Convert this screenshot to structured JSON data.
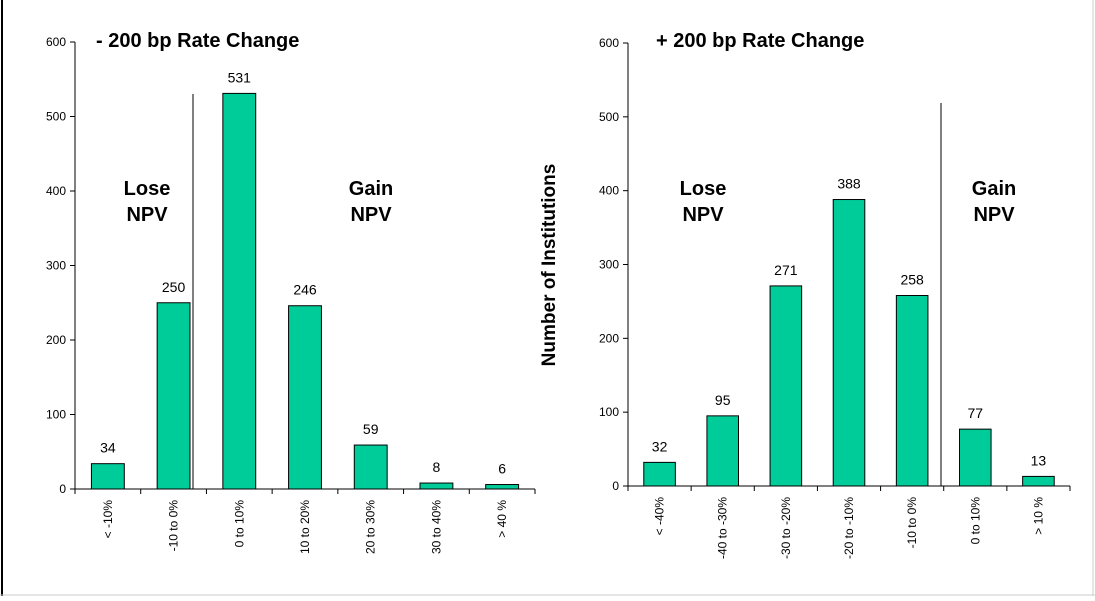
{
  "colors": {
    "bar": "#00cc99",
    "bar_stroke": "#000000",
    "axis": "#000000"
  },
  "chart_data": [
    {
      "type": "bar",
      "title": "- 200 bp Rate Change",
      "ylabel": "",
      "xlabel": "",
      "ylim": [
        0,
        600
      ],
      "yticks": [
        "0",
        "100",
        "200",
        "300",
        "400",
        "500",
        "600"
      ],
      "categories": [
        "< -10%",
        "-10 to 0%",
        "0 to 10%",
        "10 to 20%",
        "20 to 30%",
        "30 to 40%",
        "> 40 %"
      ],
      "values": [
        34,
        250,
        531,
        246,
        59,
        8,
        6
      ],
      "data_labels": [
        "34",
        "250",
        "531",
        "246",
        "59",
        "8",
        "6"
      ],
      "regions": {
        "left": [
          "Lose",
          "NPV"
        ],
        "right": [
          "Gain",
          "NPV"
        ]
      },
      "divider_after_index": 1
    },
    {
      "type": "bar",
      "title": "+ 200 bp Rate Change",
      "ylabel": "Number of Institutions",
      "xlabel": "",
      "ylim": [
        0,
        600
      ],
      "yticks": [
        "0",
        "100",
        "200",
        "300",
        "400",
        "500",
        "600"
      ],
      "categories": [
        "< -40%",
        "-40 to -30%",
        "-30 to -20%",
        "-20 to -10%",
        "-10 to 0%",
        "0 to 10%",
        "> 10 %"
      ],
      "values": [
        32,
        95,
        271,
        388,
        258,
        77,
        13
      ],
      "data_labels": [
        "32",
        "95",
        "271",
        "388",
        "258",
        "77",
        "13"
      ],
      "regions": {
        "left": [
          "Lose",
          "NPV"
        ],
        "right": [
          "Gain",
          "NPV"
        ]
      },
      "divider_after_index": 4
    }
  ]
}
